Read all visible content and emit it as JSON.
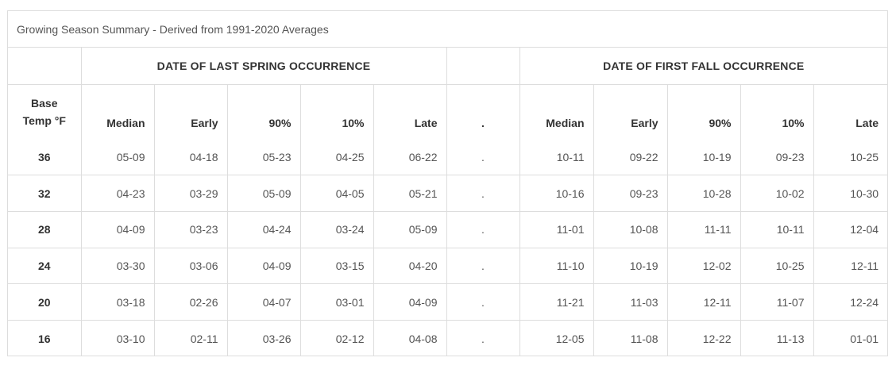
{
  "panel": {
    "title": "Growing Season Summary - Derived from 1991-2020 Averages"
  },
  "groups": {
    "spring": "DATE OF LAST SPRING OCCURRENCE",
    "fall": "DATE OF FIRST FALL OCCURRENCE"
  },
  "columns": {
    "base_line1": "Base",
    "base_line2": "Temp °F",
    "median": "Median",
    "early": "Early",
    "p90": "90%",
    "p10": "10%",
    "late": "Late",
    "separator": "."
  },
  "rows": [
    {
      "base": "36",
      "spring": [
        "05-09",
        "04-18",
        "05-23",
        "04-25",
        "06-22"
      ],
      "sep": ".",
      "fall": [
        "10-11",
        "09-22",
        "10-19",
        "09-23",
        "10-25"
      ]
    },
    {
      "base": "32",
      "spring": [
        "04-23",
        "03-29",
        "05-09",
        "04-05",
        "05-21"
      ],
      "sep": ".",
      "fall": [
        "10-16",
        "09-23",
        "10-28",
        "10-02",
        "10-30"
      ]
    },
    {
      "base": "28",
      "spring": [
        "04-09",
        "03-23",
        "04-24",
        "03-24",
        "05-09"
      ],
      "sep": ".",
      "fall": [
        "11-01",
        "10-08",
        "11-11",
        "10-11",
        "12-04"
      ]
    },
    {
      "base": "24",
      "spring": [
        "03-30",
        "03-06",
        "04-09",
        "03-15",
        "04-20"
      ],
      "sep": ".",
      "fall": [
        "11-10",
        "10-19",
        "12-02",
        "10-25",
        "12-11"
      ]
    },
    {
      "base": "20",
      "spring": [
        "03-18",
        "02-26",
        "04-07",
        "03-01",
        "04-09"
      ],
      "sep": ".",
      "fall": [
        "11-21",
        "11-03",
        "12-11",
        "11-07",
        "12-24"
      ]
    },
    {
      "base": "16",
      "spring": [
        "03-10",
        "02-11",
        "03-26",
        "02-12",
        "04-08"
      ],
      "sep": ".",
      "fall": [
        "12-05",
        "11-08",
        "12-22",
        "11-13",
        "01-01"
      ]
    }
  ]
}
